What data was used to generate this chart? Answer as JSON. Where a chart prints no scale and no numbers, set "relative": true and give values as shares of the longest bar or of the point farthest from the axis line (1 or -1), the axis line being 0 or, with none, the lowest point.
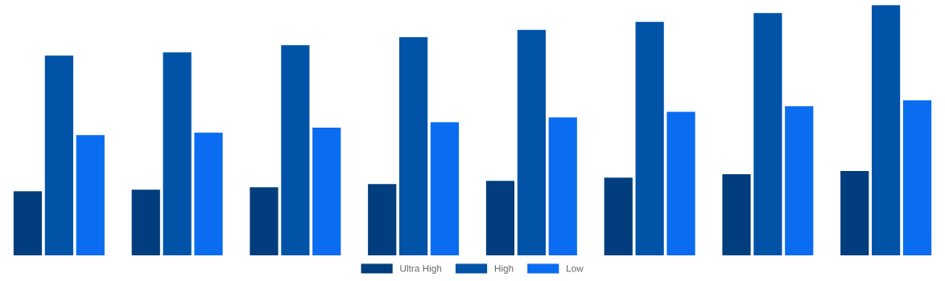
{
  "chart_data": {
    "type": "bar",
    "relative": true,
    "legend": "bottom",
    "categories": [
      null,
      null,
      null,
      null,
      null,
      null,
      null,
      null
    ],
    "series": [
      {
        "name": "Ultra High",
        "color": "#023e7d",
        "values": [
          0.256,
          0.263,
          0.272,
          0.285,
          0.298,
          0.311,
          0.324,
          0.337
        ]
      },
      {
        "name": "High",
        "color": "#0053a6",
        "values": [
          0.798,
          0.811,
          0.84,
          0.872,
          0.901,
          0.933,
          0.968,
          1
        ]
      },
      {
        "name": "Low",
        "color": "#0a6cf0",
        "values": [
          0.481,
          0.49,
          0.51,
          0.532,
          0.551,
          0.574,
          0.596,
          0.619
        ]
      }
    ]
  }
}
